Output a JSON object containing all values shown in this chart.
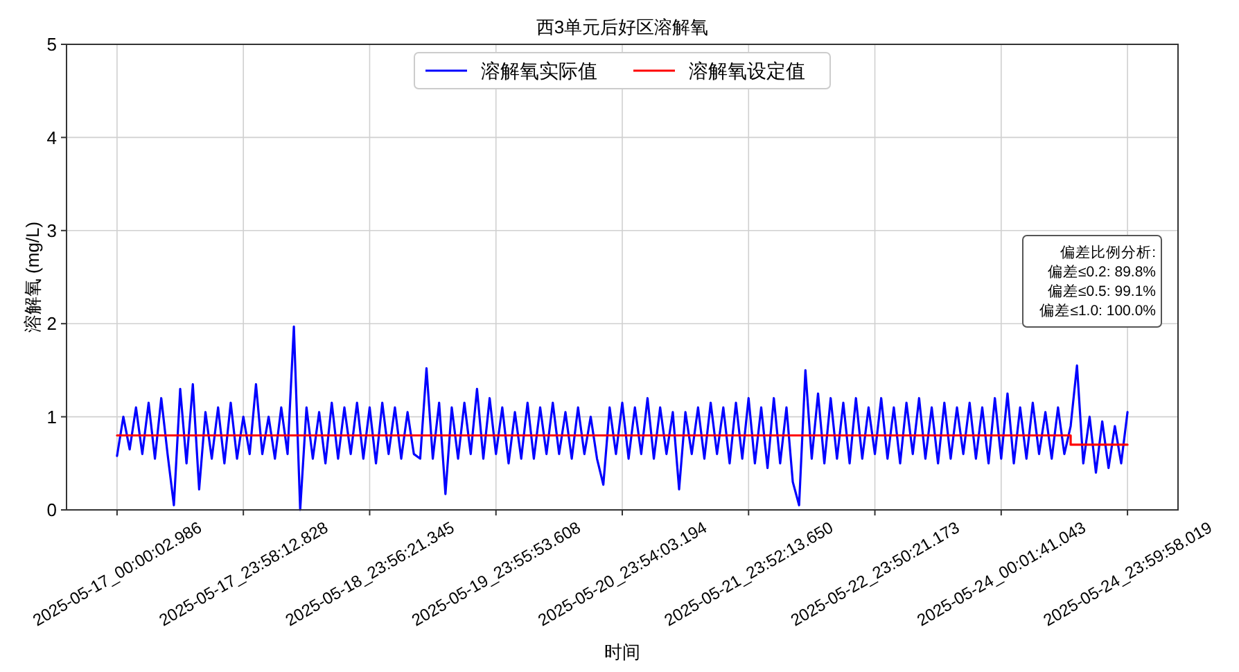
{
  "chart_data": {
    "type": "line",
    "title": "西3单元后好区溶解氧",
    "xlabel": "时间",
    "ylabel": "溶解氧 (mg/L)",
    "categories": [
      "2025-05-17_00:00:02.986",
      null,
      null,
      null,
      null,
      null,
      null,
      null,
      null,
      null,
      null,
      null,
      null,
      null,
      null,
      null,
      null,
      null,
      null,
      null,
      "2025-05-17_23:58:12.828",
      null,
      null,
      null,
      null,
      null,
      null,
      null,
      null,
      null,
      null,
      null,
      null,
      null,
      null,
      null,
      null,
      null,
      null,
      null,
      "2025-05-18_23:56:21.345",
      null,
      null,
      null,
      null,
      null,
      null,
      null,
      null,
      null,
      null,
      null,
      null,
      null,
      null,
      null,
      null,
      null,
      null,
      null,
      "2025-05-19_23:55:53.608",
      null,
      null,
      null,
      null,
      null,
      null,
      null,
      null,
      null,
      null,
      null,
      null,
      null,
      null,
      null,
      null,
      null,
      null,
      null,
      "2025-05-20_23:54:03.194",
      null,
      null,
      null,
      null,
      null,
      null,
      null,
      null,
      null,
      null,
      null,
      null,
      null,
      null,
      null,
      null,
      null,
      null,
      null,
      "2025-05-21_23:52:13.650",
      null,
      null,
      null,
      null,
      null,
      null,
      null,
      null,
      null,
      null,
      null,
      null,
      null,
      null,
      null,
      null,
      null,
      null,
      null,
      "2025-05-22_23:50:21.173",
      null,
      null,
      null,
      null,
      null,
      null,
      null,
      null,
      null,
      null,
      null,
      null,
      null,
      null,
      null,
      null,
      null,
      null,
      null,
      "2025-05-24_00:01:41.043",
      null,
      null,
      null,
      null,
      null,
      null,
      null,
      null,
      null,
      null,
      null,
      null,
      null,
      null,
      null,
      null,
      null,
      null,
      null,
      "2025-05-24_23:59:58.019"
    ],
    "ylim": [
      0,
      5
    ],
    "yticks": [
      0,
      1,
      2,
      3,
      4,
      5
    ],
    "grid": true,
    "legend": "top",
    "line_style": "solid",
    "annotations": [
      "偏差比例分析:",
      "偏差≤0.2: 89.8%",
      "偏差≤0.5: 99.1%",
      "偏差≤1.0: 100.0%"
    ],
    "series": [
      {
        "name": "溶解氧实际值",
        "color": "#0000ff",
        "values": [
          0.58,
          1.0,
          0.65,
          1.1,
          0.6,
          1.15,
          0.55,
          1.2,
          0.6,
          0.05,
          1.3,
          0.5,
          1.35,
          0.22,
          1.05,
          0.55,
          1.1,
          0.5,
          1.15,
          0.55,
          1.0,
          0.6,
          1.35,
          0.6,
          1.0,
          0.55,
          1.1,
          0.6,
          1.97,
          0.0,
          1.1,
          0.55,
          1.05,
          0.5,
          1.15,
          0.55,
          1.1,
          0.6,
          1.15,
          0.55,
          1.1,
          0.5,
          1.15,
          0.6,
          1.1,
          0.55,
          1.05,
          0.6,
          0.55,
          1.52,
          0.55,
          1.15,
          0.17,
          1.1,
          0.55,
          1.15,
          0.6,
          1.3,
          0.55,
          1.2,
          0.6,
          1.1,
          0.5,
          1.05,
          0.55,
          1.15,
          0.55,
          1.1,
          0.6,
          1.15,
          0.6,
          1.05,
          0.55,
          1.1,
          0.6,
          1.0,
          0.55,
          0.27,
          1.1,
          0.6,
          1.15,
          0.55,
          1.1,
          0.6,
          1.2,
          0.55,
          1.1,
          0.6,
          1.05,
          0.22,
          1.05,
          0.6,
          1.1,
          0.55,
          1.15,
          0.6,
          1.1,
          0.5,
          1.15,
          0.55,
          1.2,
          0.5,
          1.1,
          0.45,
          1.2,
          0.5,
          1.1,
          0.3,
          0.05,
          1.5,
          0.55,
          1.25,
          0.5,
          1.2,
          0.55,
          1.15,
          0.5,
          1.2,
          0.55,
          1.1,
          0.6,
          1.2,
          0.55,
          1.1,
          0.5,
          1.15,
          0.6,
          1.2,
          0.55,
          1.1,
          0.5,
          1.15,
          0.55,
          1.1,
          0.6,
          1.15,
          0.55,
          1.1,
          0.5,
          1.2,
          0.55,
          1.25,
          0.5,
          1.1,
          0.55,
          1.15,
          0.6,
          1.05,
          0.55,
          1.1,
          0.6,
          0.9,
          1.55,
          0.5,
          1.0,
          0.4,
          0.95,
          0.45,
          0.9,
          0.5,
          1.05
        ]
      },
      {
        "name": "溶解氧设定值",
        "color": "#ff0000",
        "type": "step",
        "values": [
          0.8,
          0.8,
          0.8,
          0.8,
          0.8,
          0.8,
          0.8,
          0.8,
          0.8,
          0.8,
          0.8,
          0.8,
          0.8,
          0.8,
          0.8,
          0.8,
          0.8,
          0.8,
          0.8,
          0.8,
          0.8,
          0.8,
          0.8,
          0.8,
          0.8,
          0.8,
          0.8,
          0.8,
          0.8,
          0.8,
          0.8,
          0.8,
          0.8,
          0.8,
          0.8,
          0.8,
          0.8,
          0.8,
          0.8,
          0.8,
          0.8,
          0.8,
          0.8,
          0.8,
          0.8,
          0.8,
          0.8,
          0.8,
          0.8,
          0.8,
          0.8,
          0.8,
          0.8,
          0.8,
          0.8,
          0.8,
          0.8,
          0.8,
          0.8,
          0.8,
          0.8,
          0.8,
          0.8,
          0.8,
          0.8,
          0.8,
          0.8,
          0.8,
          0.8,
          0.8,
          0.8,
          0.8,
          0.8,
          0.8,
          0.8,
          0.8,
          0.8,
          0.8,
          0.8,
          0.8,
          0.8,
          0.8,
          0.8,
          0.8,
          0.8,
          0.8,
          0.8,
          0.8,
          0.8,
          0.8,
          0.8,
          0.8,
          0.8,
          0.8,
          0.8,
          0.8,
          0.8,
          0.8,
          0.8,
          0.8,
          0.8,
          0.8,
          0.8,
          0.8,
          0.8,
          0.8,
          0.8,
          0.8,
          0.8,
          0.8,
          0.8,
          0.8,
          0.8,
          0.8,
          0.8,
          0.8,
          0.8,
          0.8,
          0.8,
          0.8,
          0.8,
          0.8,
          0.8,
          0.8,
          0.8,
          0.8,
          0.8,
          0.8,
          0.8,
          0.8,
          0.8,
          0.8,
          0.8,
          0.8,
          0.8,
          0.8,
          0.8,
          0.8,
          0.8,
          0.8,
          0.8,
          0.8,
          0.8,
          0.8,
          0.8,
          0.8,
          0.8,
          0.8,
          0.8,
          0.8,
          0.8,
          0.7,
          0.7,
          0.7,
          0.7,
          0.7,
          0.7,
          0.7,
          0.7,
          0.7,
          0.7
        ]
      }
    ]
  }
}
